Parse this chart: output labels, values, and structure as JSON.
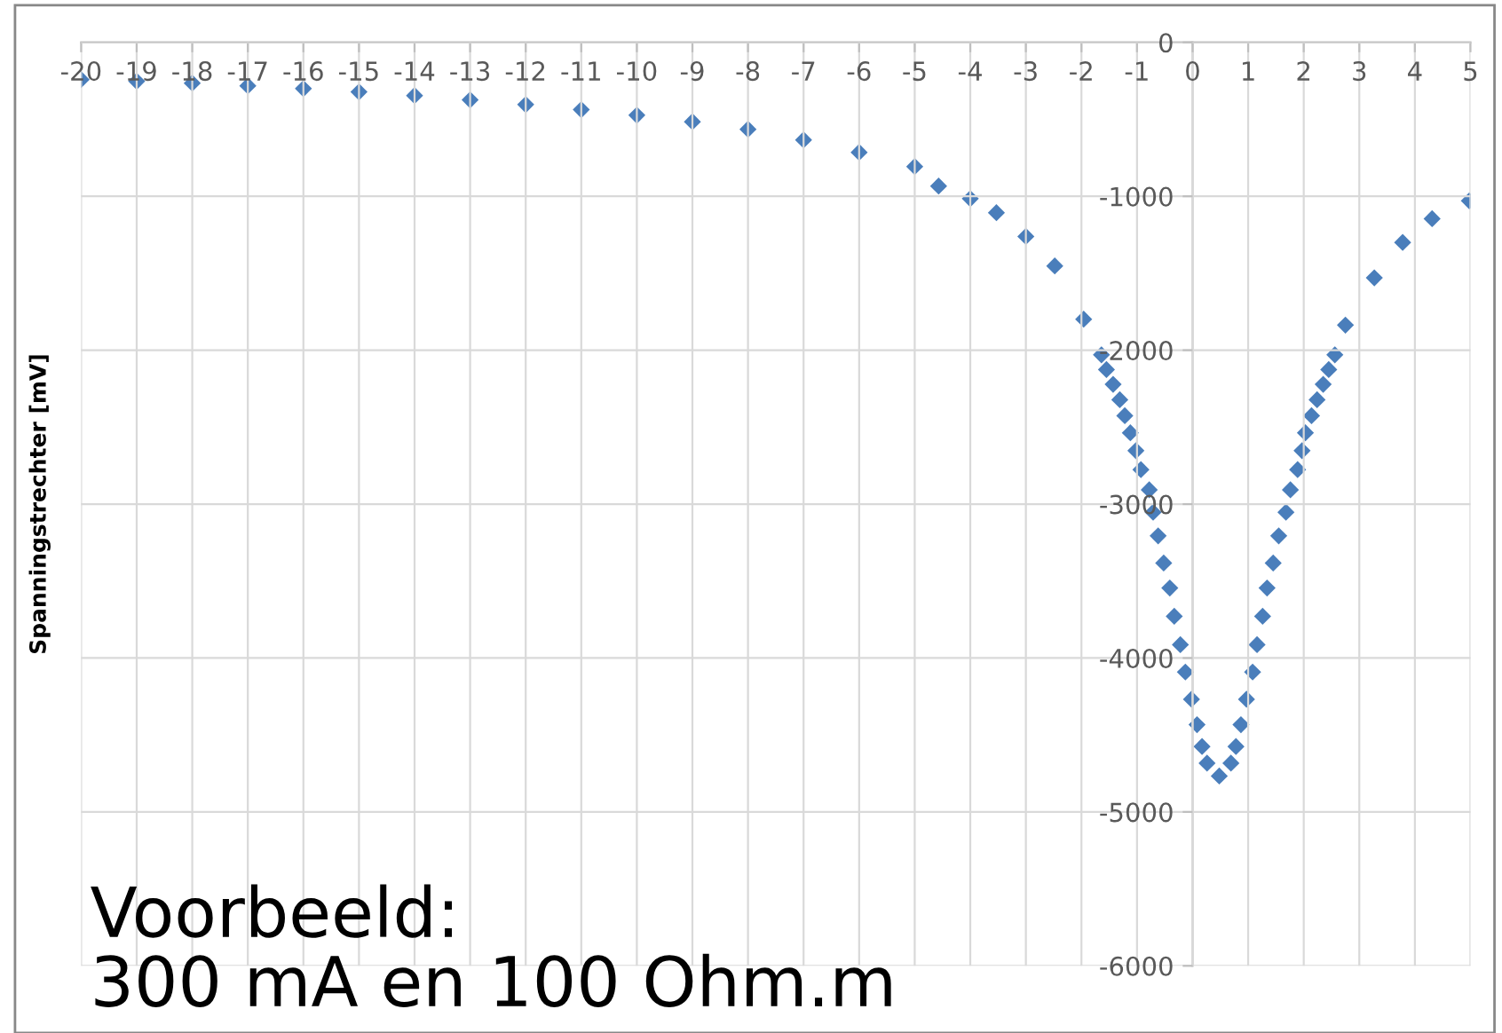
{
  "chart_data": {
    "type": "scatter",
    "ylabel": "Spanningstrechter [mV]",
    "annotations": [
      "Voorbeeld:\n300 mA en 100 Ohm.m"
    ],
    "series": [
      {
        "color": "#4a7ebb",
        "x": [
          -20,
          -19,
          -18,
          -17,
          -16,
          -15,
          -14,
          -13,
          -12,
          -11,
          -10,
          -9,
          -8,
          -7,
          -6,
          -5,
          -4.57,
          -4,
          -3.53,
          -3.0,
          -2.48,
          -1.96,
          -1.64,
          -1.55,
          -1.43,
          -1.31,
          -1.22,
          -1.12,
          -1.02,
          -0.93,
          -0.78,
          -0.71,
          -0.62,
          -0.52,
          -0.41,
          -0.33,
          -0.22,
          -0.13,
          -0.02,
          0.08,
          0.17,
          0.26,
          0.48,
          0.69,
          0.78,
          0.87,
          0.97,
          1.08,
          1.16,
          1.26,
          1.34,
          1.45,
          1.55,
          1.68,
          1.76,
          1.89,
          1.97,
          2.03,
          2.14,
          2.24,
          2.35,
          2.45,
          2.56,
          2.75,
          3.27,
          3.78,
          4.31,
          4.98
        ],
        "values": [
          -242,
          -253,
          -265,
          -282,
          -300,
          -322,
          -346,
          -374,
          -404,
          -437,
          -473,
          -516,
          -565,
          -634,
          -715,
          -807,
          -934,
          -1015,
          -1107,
          -1261,
          -1453,
          -1799,
          -2030,
          -2126,
          -2222,
          -2322,
          -2426,
          -2537,
          -2653,
          -2776,
          -2907,
          -3053,
          -3206,
          -3383,
          -3545,
          -3729,
          -3913,
          -4091,
          -4268,
          -4433,
          -4575,
          -4683,
          -4767,
          -4683,
          -4575,
          -4433,
          -4268,
          -4091,
          -3913,
          -3729,
          -3545,
          -3383,
          -3206,
          -3053,
          -2907,
          -2776,
          -2653,
          -2537,
          -2426,
          -2322,
          -2222,
          -2126,
          -2030,
          -1837,
          -1530,
          -1300,
          -1146,
          -1030
        ]
      }
    ],
    "marker": "diamond",
    "grid": true,
    "xlim": [
      -20,
      5
    ],
    "xticks": [
      -20,
      -19,
      -18,
      -17,
      -16,
      -15,
      -14,
      -13,
      -12,
      -11,
      -10,
      -9,
      -8,
      -7,
      -6,
      -5,
      -4,
      -3,
      -2,
      -1,
      0,
      1,
      2,
      3,
      4,
      5
    ],
    "ylim": [
      -6000,
      0
    ],
    "yticks": [
      0,
      -1000,
      -2000,
      -3000,
      -4000,
      -5000,
      -6000
    ]
  }
}
